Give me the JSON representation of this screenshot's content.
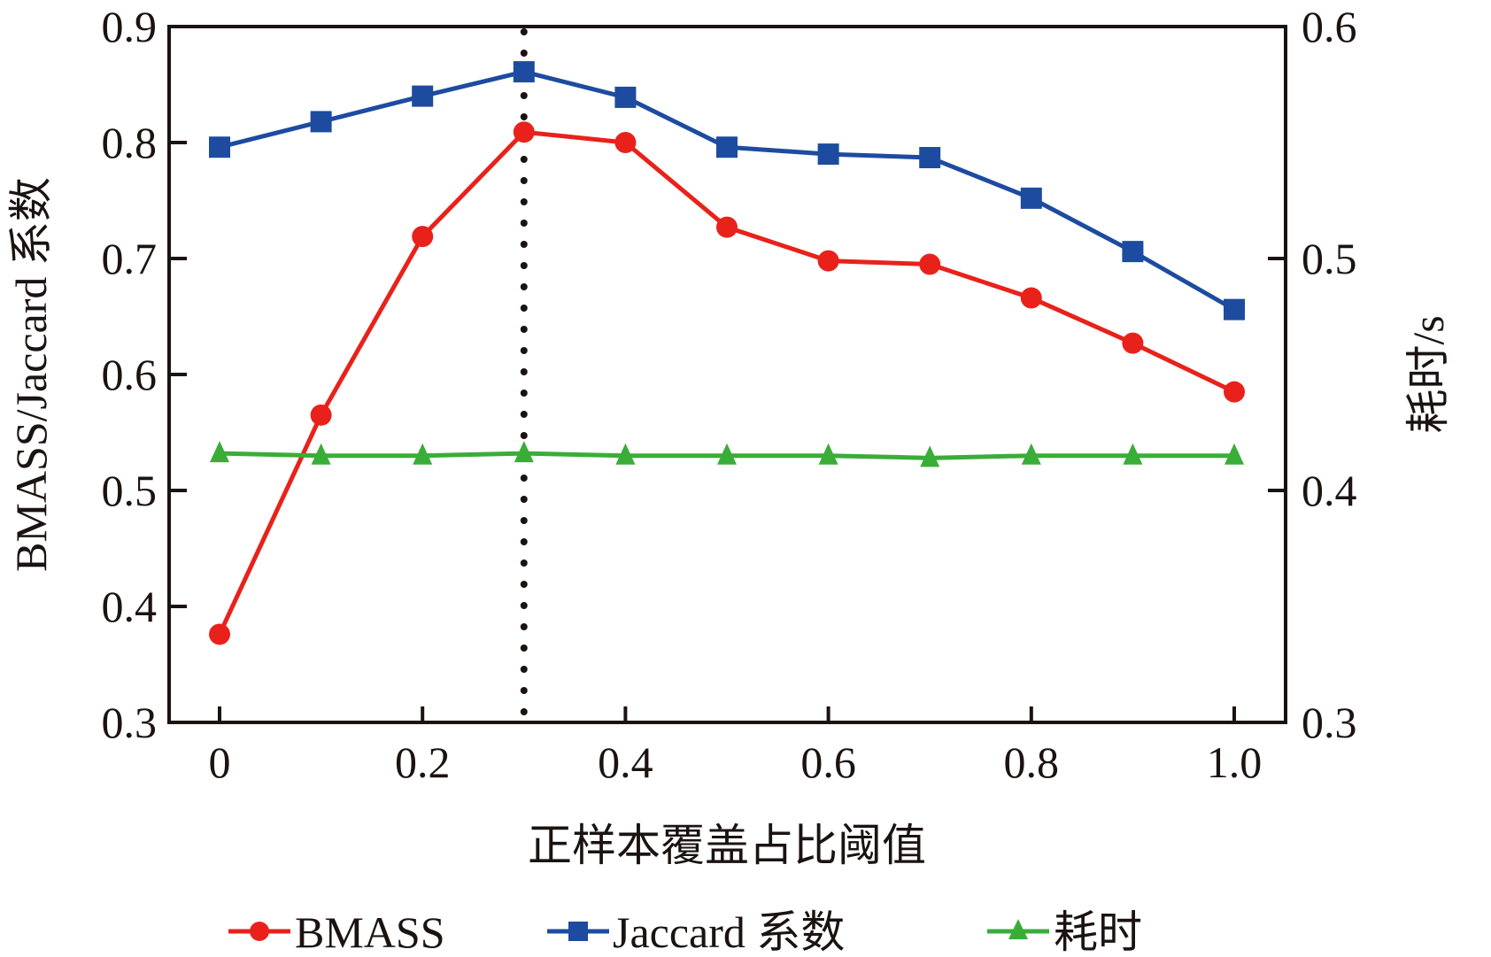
{
  "chart_data": {
    "type": "line",
    "title": "",
    "xlabel": "正样本覆盖占比阈值",
    "ylabel_left": "BMASS/Jaccard 系数",
    "ylabel_right": "耗时/s",
    "x": [
      0,
      0.1,
      0.2,
      0.3,
      0.4,
      0.5,
      0.6,
      0.7,
      0.8,
      0.9,
      1.0
    ],
    "xlim": [
      -0.05,
      1.05
    ],
    "xticks": [
      0,
      0.2,
      0.4,
      0.6,
      0.8,
      1.0
    ],
    "xtick_labels": [
      "0",
      "0.2",
      "0.4",
      "0.6",
      "0.8",
      "1.0"
    ],
    "ylim_left": [
      0.3,
      0.9
    ],
    "yticks_left": [
      "0.3",
      "0.4",
      "0.5",
      "0.6",
      "0.7",
      "0.8",
      "0.9"
    ],
    "ylim_right": [
      0.3,
      0.6
    ],
    "yticks_right": [
      "0.3",
      "0.4",
      "0.5",
      "0.6"
    ],
    "grid": false,
    "vline": {
      "x": 0.3,
      "style": "dotted"
    },
    "legend_position": "bottom",
    "series": [
      {
        "name": "BMASS",
        "axis": "left",
        "marker": "circle",
        "color": "#e8221b",
        "values": [
          0.376,
          0.565,
          0.719,
          0.809,
          0.8,
          0.727,
          0.698,
          0.695,
          0.666,
          0.627,
          0.585
        ]
      },
      {
        "name": "Jaccard 系数",
        "axis": "left",
        "marker": "square",
        "color": "#1d4ba0",
        "values": [
          0.796,
          0.818,
          0.84,
          0.861,
          0.839,
          0.796,
          0.79,
          0.787,
          0.752,
          0.706,
          0.656
        ]
      },
      {
        "name": "耗时",
        "axis": "right",
        "marker": "triangle",
        "color": "#3aad38",
        "values": [
          0.416,
          0.415,
          0.415,
          0.416,
          0.415,
          0.415,
          0.415,
          0.414,
          0.415,
          0.415,
          0.415
        ]
      }
    ]
  }
}
